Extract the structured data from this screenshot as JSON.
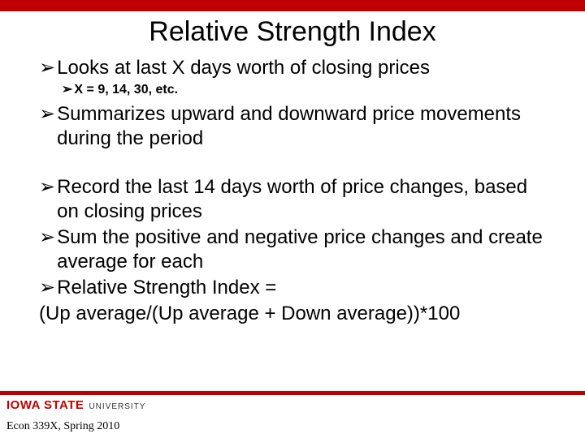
{
  "colors": {
    "accent": "#c00000",
    "text": "#000000",
    "background": "#ffffff"
  },
  "title": "Relative Strength Index",
  "bullets": {
    "b1": "Looks at last X days worth of closing prices",
    "b1a": "X = 9, 14, 30, etc.",
    "b2": "Summarizes upward and downward price movements during the period",
    "b3": "Record the last 14 days worth of price changes, based on closing prices",
    "b4": "Sum the positive and negative price changes and create average for each",
    "b5": "Relative Strength Index =",
    "b5_line2": "(Up average/(Up average + Down average))*100"
  },
  "footer": {
    "logo_iowa": "IOWA",
    "logo_state": "STATE",
    "logo_univ": "UNIVERSITY",
    "course": "Econ 339X, Spring 2010"
  },
  "arrow_glyph": "➢"
}
